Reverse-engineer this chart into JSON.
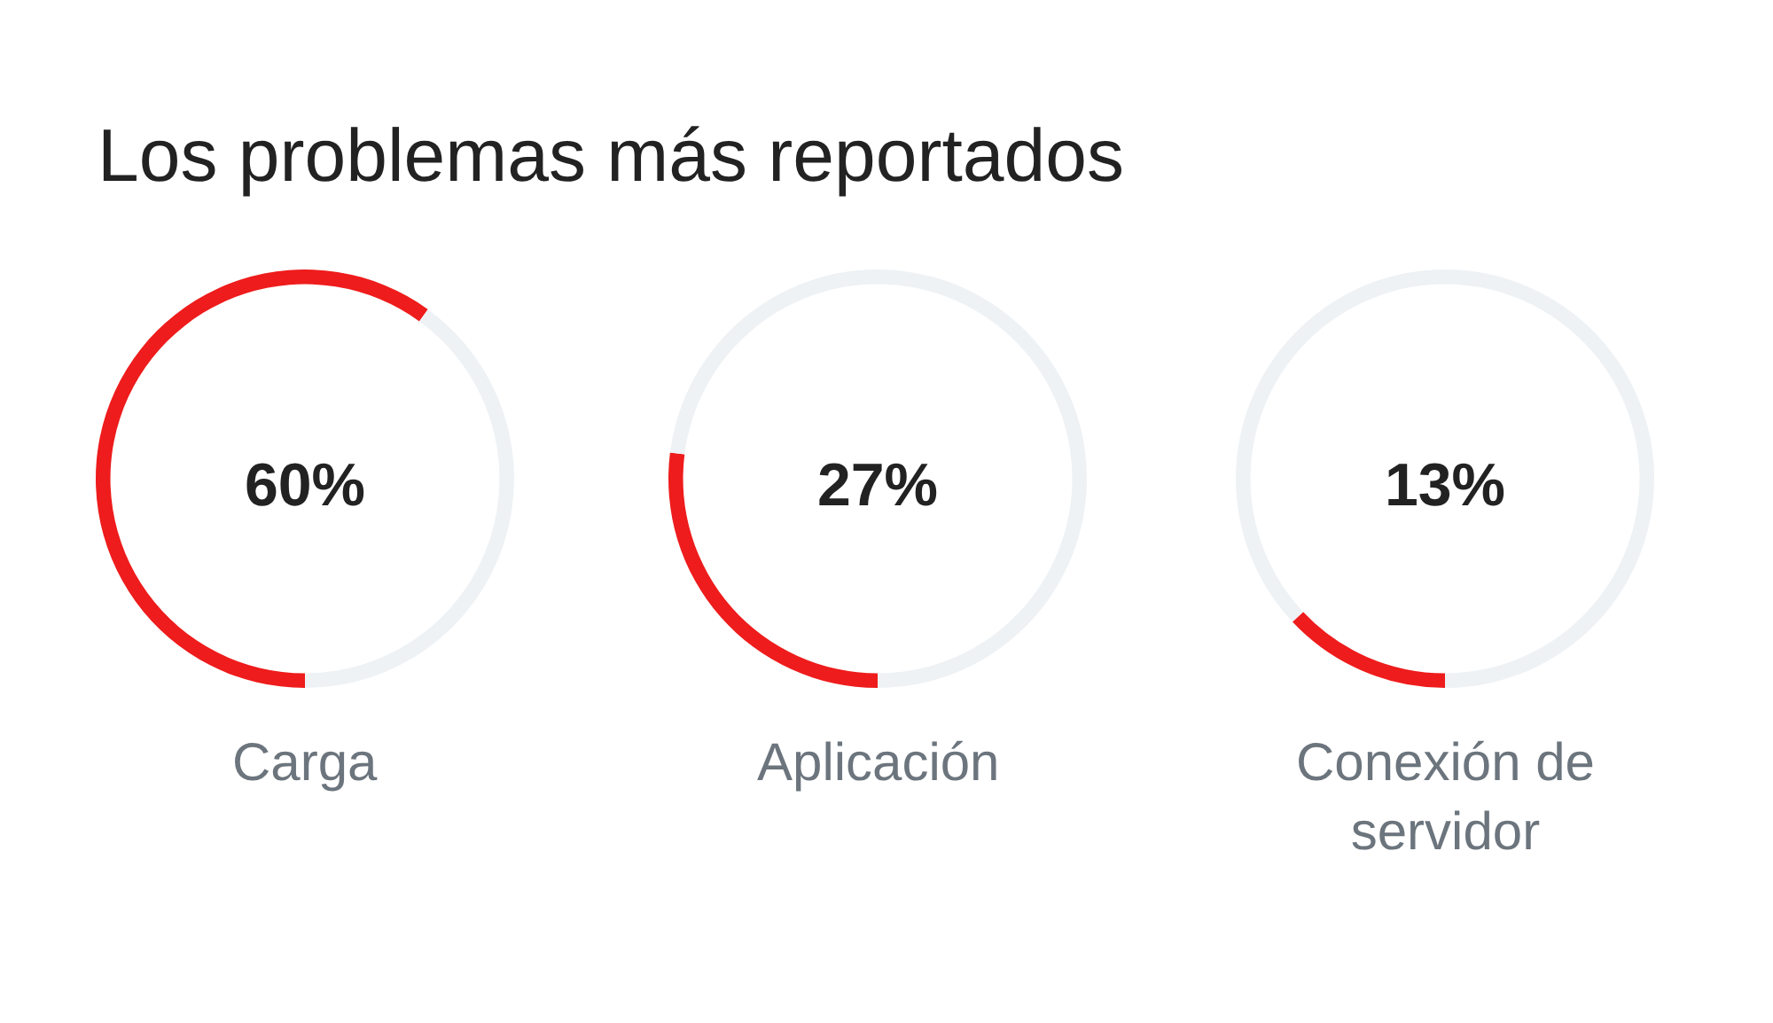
{
  "chart_data": [
    {
      "type": "donut",
      "title": "Los problemas más reportados",
      "categories": [
        "Carga",
        null
      ],
      "values": [
        60,
        40
      ],
      "colors": [
        "#ee1c1c",
        "#eef2f5"
      ],
      "value_labels": [
        "60%",
        null
      ],
      "legend": false
    },
    {
      "type": "donut",
      "categories": [
        "Aplicación",
        null
      ],
      "values": [
        27,
        73
      ],
      "colors": [
        "#ee1c1c",
        "#eef2f5"
      ],
      "value_labels": [
        "27%",
        null
      ],
      "legend": false
    },
    {
      "type": "donut",
      "categories": [
        "Conexión de servidor",
        null
      ],
      "values": [
        13,
        87
      ],
      "colors": [
        "#ee1c1c",
        "#eef2f5"
      ],
      "value_labels": [
        "13%",
        null
      ],
      "legend": false
    }
  ]
}
